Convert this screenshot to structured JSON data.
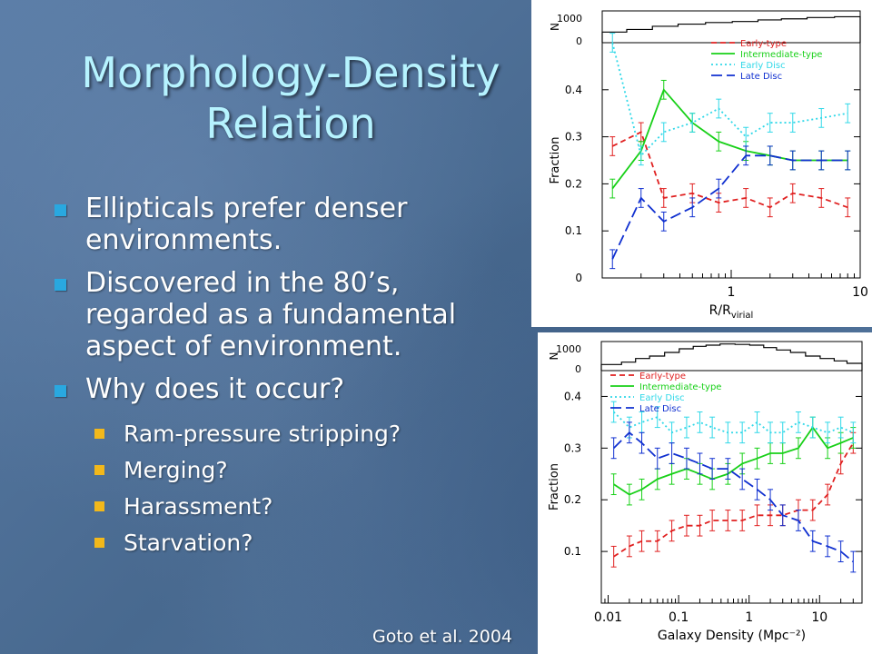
{
  "slide": {
    "title_line1": "Morphology-Density",
    "title_line2": "Relation",
    "bullets": [
      "Ellipticals prefer denser environments.",
      "Discovered in the 80’s, regarded as a fundamental aspect of environment.",
      "Why does it occur?"
    ],
    "subbullets": [
      "Ram-pressure stripping?",
      "Merging?",
      "Harassment?",
      "Starvation?"
    ],
    "citation": "Goto et al. 2004"
  },
  "chart_data": [
    {
      "type": "line",
      "xlabel": "R/R",
      "xlabel_sub": "virial",
      "ylabel": "Fraction",
      "hist_label": "N",
      "hist_ticks": [
        "1000",
        "0"
      ],
      "xscale": "log",
      "xlim": [
        0.1,
        10
      ],
      "ylim": [
        0,
        0.5
      ],
      "x_ticks": [
        "1",
        "10"
      ],
      "y_ticks": [
        "0",
        "0.1",
        "0.2",
        "0.3",
        "0.4"
      ],
      "legend_position": "top-right",
      "x": [
        0.12,
        0.2,
        0.3,
        0.5,
        0.8,
        1.3,
        2,
        3,
        5,
        8
      ],
      "histogram": [
        400,
        500,
        620,
        700,
        760,
        800,
        860,
        900,
        950,
        980
      ],
      "series": [
        {
          "name": "Early-type",
          "color": "#e02020",
          "dash": "6,4",
          "values": [
            0.28,
            0.31,
            0.17,
            0.18,
            0.16,
            0.17,
            0.15,
            0.18,
            0.17,
            0.15
          ]
        },
        {
          "name": "Intermediate-type",
          "color": "#18d018",
          "dash": "",
          "values": [
            0.19,
            0.27,
            0.4,
            0.33,
            0.29,
            0.27,
            0.26,
            0.25,
            0.25,
            0.25
          ]
        },
        {
          "name": "Early Disc",
          "color": "#30d8e8",
          "dash": "2,3",
          "values": [
            0.5,
            0.26,
            0.31,
            0.33,
            0.36,
            0.3,
            0.33,
            0.33,
            0.34,
            0.35
          ]
        },
        {
          "name": "Late Disc",
          "color": "#1030d0",
          "dash": "12,5",
          "values": [
            0.04,
            0.17,
            0.12,
            0.15,
            0.19,
            0.26,
            0.26,
            0.25,
            0.25,
            0.25
          ]
        }
      ]
    },
    {
      "type": "line",
      "xlabel": "Galaxy Density (Mpc⁻²)",
      "ylabel": "Fraction",
      "hist_label": "N",
      "hist_ticks": [
        "1000",
        "0"
      ],
      "xscale": "log",
      "xlim": [
        0.008,
        40
      ],
      "ylim": [
        0,
        0.45
      ],
      "x_ticks": [
        "0.01",
        "0.1",
        "1",
        "10"
      ],
      "y_ticks": [
        "0.1",
        "0.2",
        "0.3",
        "0.4"
      ],
      "legend_position": "top-left",
      "x": [
        0.012,
        0.02,
        0.03,
        0.05,
        0.08,
        0.13,
        0.2,
        0.3,
        0.5,
        0.8,
        1.3,
        2,
        3,
        5,
        8,
        13,
        20,
        30
      ],
      "histogram": [
        250,
        350,
        500,
        600,
        750,
        900,
        1000,
        1050,
        1100,
        1080,
        1050,
        950,
        850,
        750,
        600,
        500,
        400,
        300
      ],
      "series": [
        {
          "name": "Early-type",
          "color": "#e02020",
          "dash": "6,4",
          "values": [
            0.09,
            0.11,
            0.12,
            0.12,
            0.14,
            0.15,
            0.15,
            0.16,
            0.16,
            0.16,
            0.17,
            0.17,
            0.17,
            0.18,
            0.18,
            0.21,
            0.27,
            0.31
          ]
        },
        {
          "name": "Intermediate-type",
          "color": "#18d018",
          "dash": "",
          "values": [
            0.23,
            0.21,
            0.22,
            0.24,
            0.25,
            0.26,
            0.25,
            0.24,
            0.25,
            0.27,
            0.28,
            0.29,
            0.29,
            0.3,
            0.34,
            0.3,
            0.31,
            0.32
          ]
        },
        {
          "name": "Early Disc",
          "color": "#30d8e8",
          "dash": "2,3",
          "values": [
            0.37,
            0.34,
            0.35,
            0.36,
            0.33,
            0.34,
            0.35,
            0.34,
            0.33,
            0.33,
            0.35,
            0.33,
            0.33,
            0.35,
            0.34,
            0.33,
            0.34,
            0.33
          ]
        },
        {
          "name": "Late Disc",
          "color": "#1030d0",
          "dash": "12,5",
          "values": [
            0.3,
            0.33,
            0.31,
            0.28,
            0.29,
            0.28,
            0.27,
            0.26,
            0.26,
            0.24,
            0.22,
            0.2,
            0.17,
            0.16,
            0.12,
            0.11,
            0.1,
            0.08
          ]
        }
      ]
    }
  ]
}
